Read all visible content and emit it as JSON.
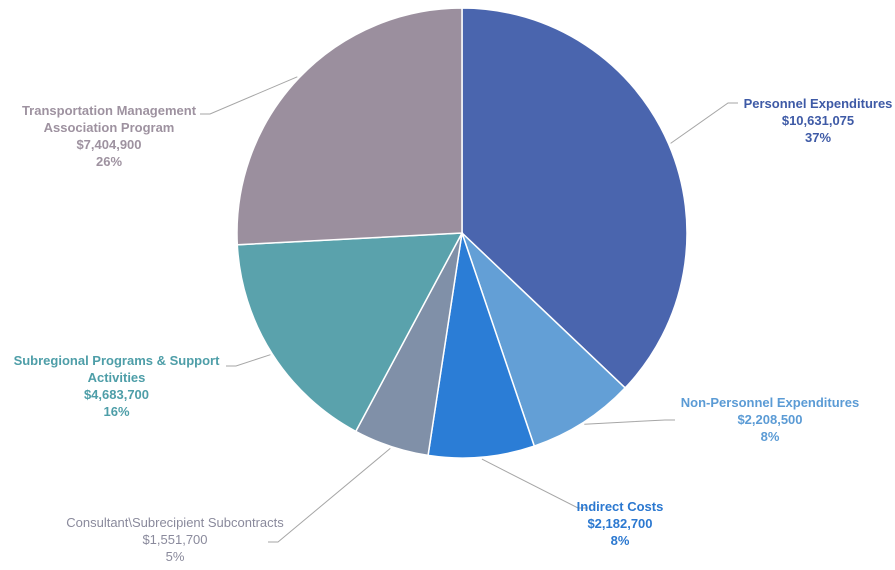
{
  "chart_data": {
    "type": "pie",
    "title": "",
    "slices": [
      {
        "label": "Personnel Expenditures",
        "amount": "$10,631,075",
        "percent": "37%",
        "value": 10631075,
        "color": "#4a65ae",
        "label_color": "#3e5aa6"
      },
      {
        "label": "Non-Personnel Expenditures",
        "amount": "$2,208,500",
        "percent": "8%",
        "value": 2208500,
        "color": "#639fd6",
        "label_color": "#5b9bd5"
      },
      {
        "label": "Indirect Costs",
        "amount": "$2,182,700",
        "percent": "8%",
        "value": 2182700,
        "color": "#2b7dd6",
        "label_color": "#2b78d0"
      },
      {
        "label": "Consultant\\Subrecipient Subcontracts",
        "amount": "$1,551,700",
        "percent": "5%",
        "value": 1551700,
        "color": "#8090a8",
        "label_color": "#8a8a9c"
      },
      {
        "label": "Subregional Programs & Support Activities",
        "amount": "$4,683,700",
        "percent": "16%",
        "value": 4683700,
        "color": "#5aa2ac",
        "label_color": "#4e9ea8"
      },
      {
        "label": "Transportation Management Association Program",
        "amount": "$7,404,900",
        "percent": "26%",
        "value": 7404900,
        "color": "#9b8f9e",
        "label_color": "#9e92a0"
      }
    ]
  }
}
